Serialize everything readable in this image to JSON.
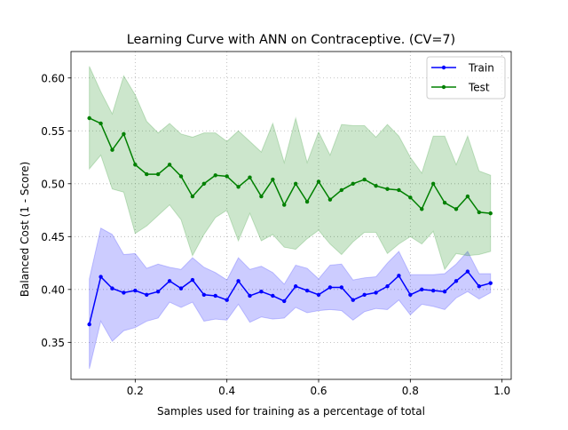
{
  "chart_data": {
    "type": "line",
    "title": "Learning Curve with ANN on Contraceptive. (CV=7)",
    "xlabel": "Samples used for training as a percentage of total",
    "ylabel": "Balanced Cost (1 - Score)",
    "xlim": [
      0.06,
      1.02
    ],
    "ylim": [
      0.315,
      0.625
    ],
    "xticks": [
      0.2,
      0.4,
      0.6,
      0.8,
      1.0
    ],
    "xtick_labels": [
      "0.2",
      "0.4",
      "0.6",
      "0.8",
      "1.0"
    ],
    "yticks": [
      0.35,
      0.4,
      0.45,
      0.5,
      0.55,
      0.6
    ],
    "ytick_labels": [
      "0.35",
      "0.40",
      "0.45",
      "0.50",
      "0.55",
      "0.60"
    ],
    "grid": true,
    "legend_position": "top-right",
    "x": [
      0.1,
      0.125,
      0.15,
      0.175,
      0.2,
      0.225,
      0.25,
      0.275,
      0.3,
      0.325,
      0.35,
      0.375,
      0.4,
      0.425,
      0.45,
      0.475,
      0.5,
      0.525,
      0.55,
      0.575,
      0.6,
      0.625,
      0.65,
      0.675,
      0.7,
      0.725,
      0.75,
      0.775,
      0.8,
      0.825,
      0.85,
      0.875,
      0.9,
      0.925,
      0.95,
      0.975
    ],
    "series": [
      {
        "name": "Train",
        "color": "#0000ff",
        "values": [
          0.367,
          0.412,
          0.401,
          0.397,
          0.399,
          0.395,
          0.398,
          0.408,
          0.401,
          0.409,
          0.395,
          0.394,
          0.39,
          0.408,
          0.394,
          0.398,
          0.394,
          0.389,
          0.403,
          0.399,
          0.395,
          0.402,
          0.402,
          0.39,
          0.395,
          0.397,
          0.403,
          0.413,
          0.395,
          0.4,
          0.399,
          0.398,
          0.408,
          0.417,
          0.403,
          0.406
        ],
        "upper": [
          0.41,
          0.458,
          0.452,
          0.433,
          0.434,
          0.42,
          0.424,
          0.421,
          0.419,
          0.43,
          0.421,
          0.416,
          0.409,
          0.43,
          0.419,
          0.422,
          0.416,
          0.405,
          0.423,
          0.42,
          0.41,
          0.423,
          0.424,
          0.409,
          0.411,
          0.412,
          0.425,
          0.436,
          0.414,
          0.414,
          0.414,
          0.415,
          0.424,
          0.436,
          0.415,
          0.415
        ],
        "lower": [
          0.325,
          0.37,
          0.351,
          0.361,
          0.364,
          0.37,
          0.373,
          0.388,
          0.383,
          0.388,
          0.37,
          0.372,
          0.371,
          0.386,
          0.369,
          0.374,
          0.372,
          0.373,
          0.383,
          0.378,
          0.38,
          0.381,
          0.38,
          0.371,
          0.379,
          0.382,
          0.381,
          0.39,
          0.376,
          0.386,
          0.384,
          0.381,
          0.392,
          0.398,
          0.391,
          0.397
        ]
      },
      {
        "name": "Test",
        "color": "#008000",
        "values": [
          0.562,
          0.557,
          0.532,
          0.547,
          0.518,
          0.509,
          0.509,
          0.518,
          0.507,
          0.488,
          0.5,
          0.508,
          0.507,
          0.497,
          0.506,
          0.488,
          0.504,
          0.48,
          0.5,
          0.483,
          0.502,
          0.485,
          0.494,
          0.5,
          0.504,
          0.498,
          0.495,
          0.494,
          0.487,
          0.476,
          0.5,
          0.482,
          0.476,
          0.488,
          0.473,
          0.472
        ],
        "upper": [
          0.611,
          0.587,
          0.566,
          0.602,
          0.584,
          0.559,
          0.548,
          0.557,
          0.547,
          0.544,
          0.548,
          0.548,
          0.54,
          0.55,
          0.54,
          0.53,
          0.557,
          0.52,
          0.562,
          0.52,
          0.549,
          0.527,
          0.556,
          0.555,
          0.555,
          0.544,
          0.556,
          0.545,
          0.525,
          0.51,
          0.545,
          0.545,
          0.518,
          0.545,
          0.512,
          0.508
        ],
        "lower": [
          0.514,
          0.527,
          0.495,
          0.492,
          0.453,
          0.46,
          0.47,
          0.48,
          0.466,
          0.432,
          0.452,
          0.468,
          0.475,
          0.446,
          0.472,
          0.446,
          0.452,
          0.44,
          0.438,
          0.448,
          0.456,
          0.443,
          0.433,
          0.445,
          0.454,
          0.454,
          0.434,
          0.443,
          0.45,
          0.443,
          0.455,
          0.419,
          0.434,
          0.432,
          0.433,
          0.436
        ]
      }
    ]
  }
}
